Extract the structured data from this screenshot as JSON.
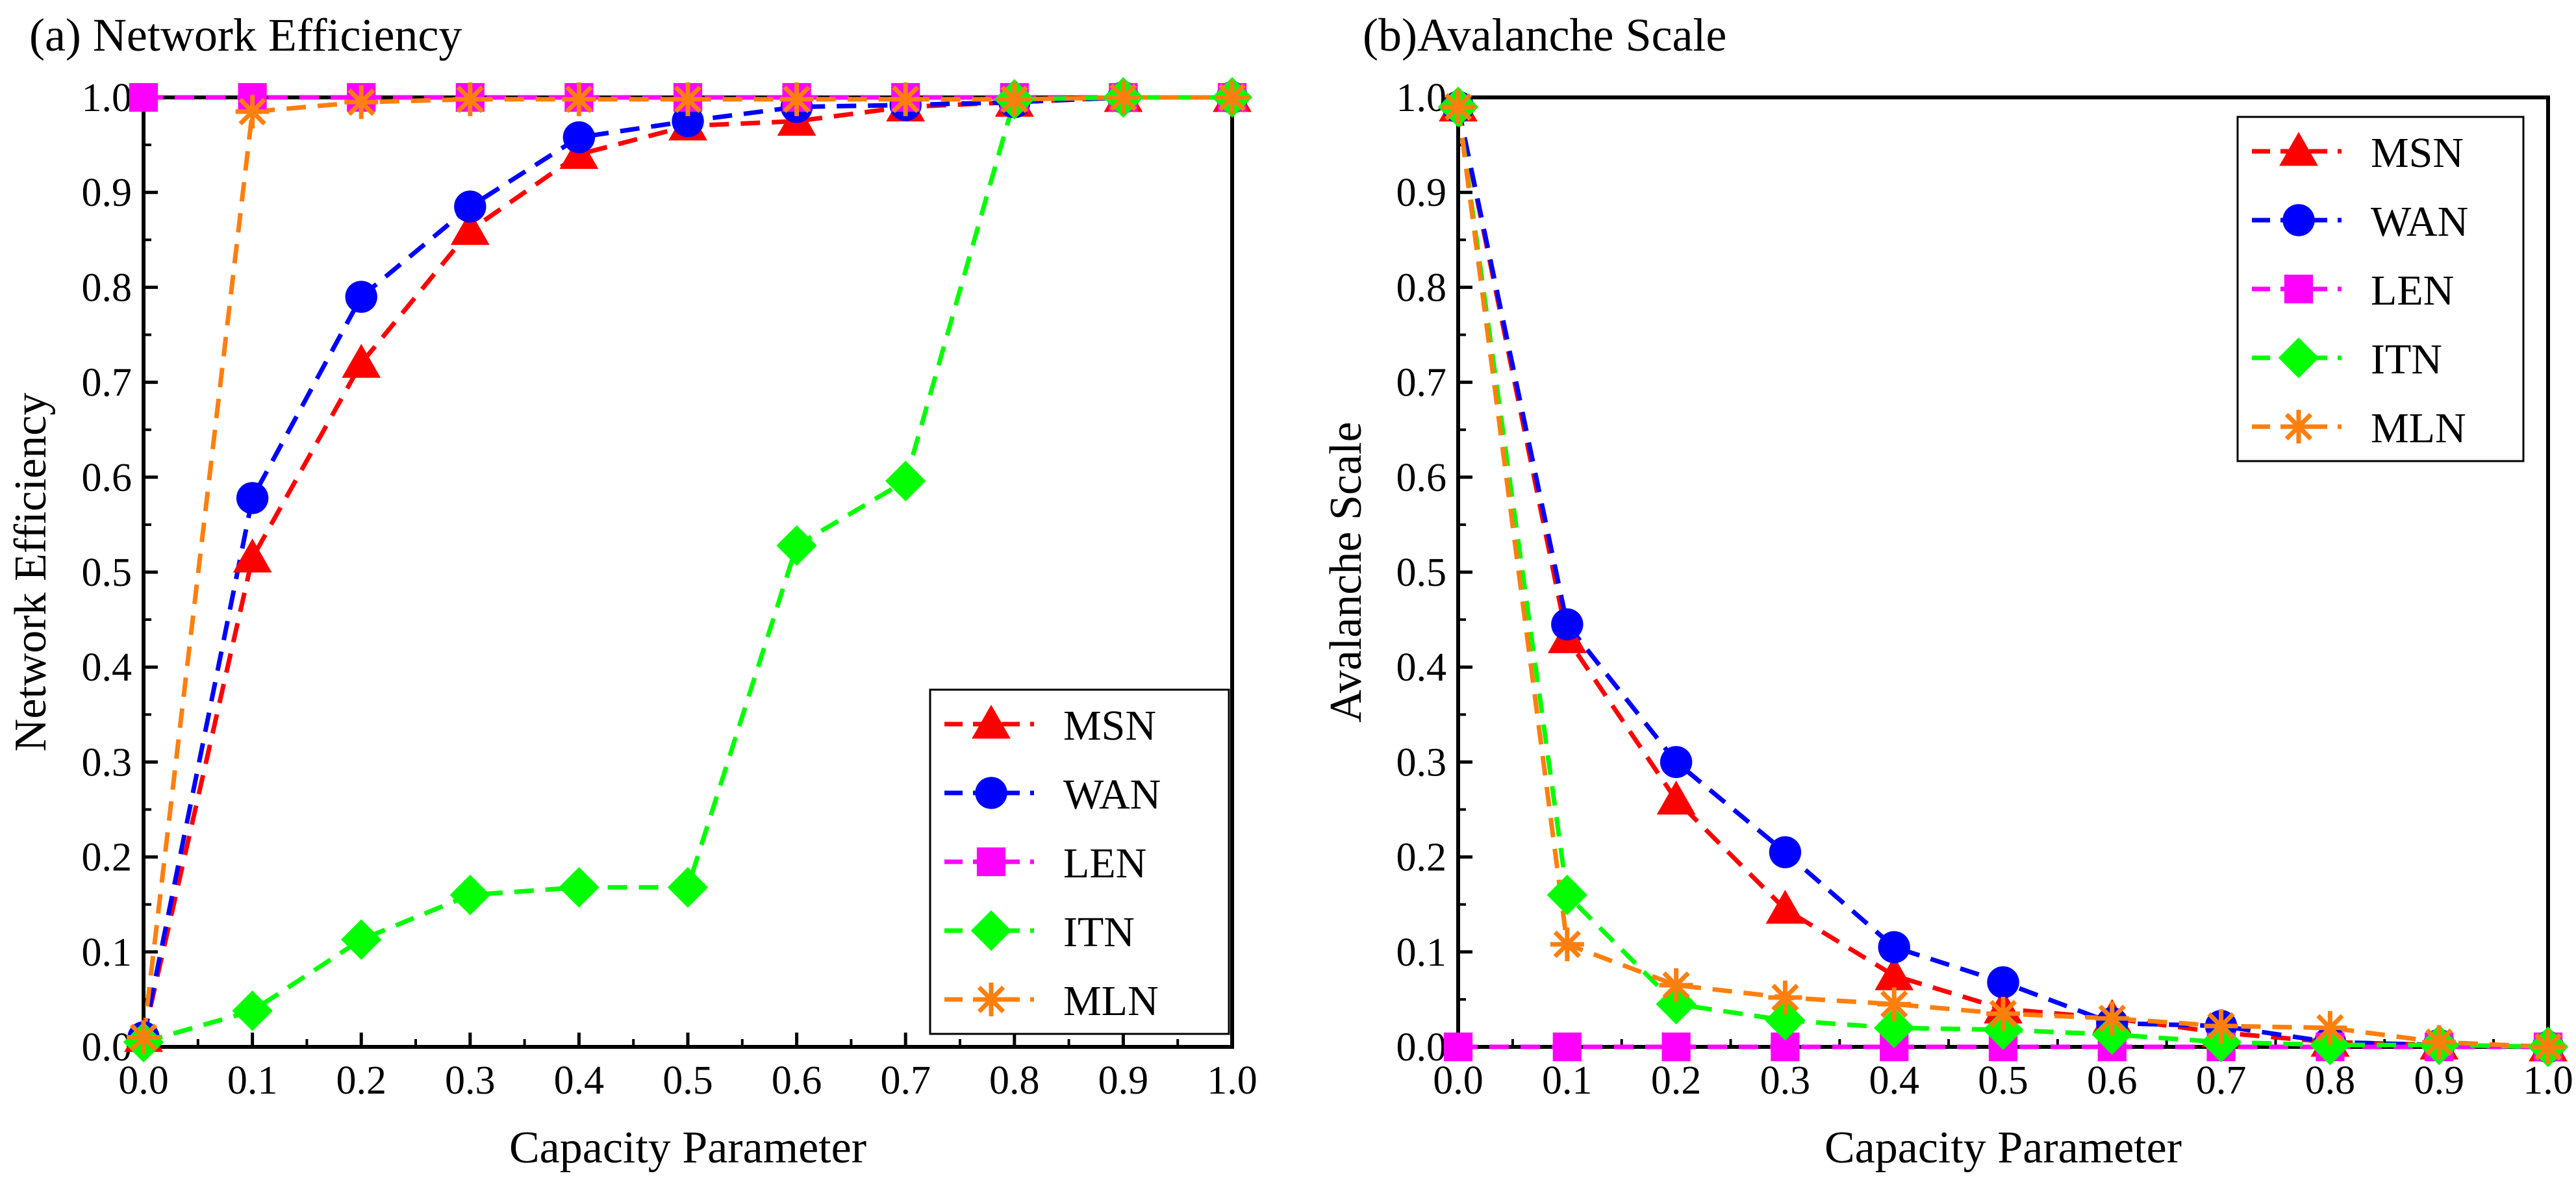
{
  "chart_data": [
    {
      "type": "line",
      "title": "(a) Network Efficiency",
      "xlabel": "Capacity Parameter",
      "ylabel": "Network Efficiency",
      "xlim": [
        0.0,
        1.0
      ],
      "ylim": [
        0.0,
        1.0
      ],
      "xticks": [
        "0.0",
        "0.1",
        "0.2",
        "0.3",
        "0.4",
        "0.5",
        "0.6",
        "0.7",
        "0.8",
        "0.9",
        "1.0"
      ],
      "yticks": [
        "0.0",
        "0.1",
        "0.2",
        "0.3",
        "0.4",
        "0.5",
        "0.6",
        "0.7",
        "0.8",
        "0.9",
        "1.0"
      ],
      "grid": false,
      "legend_position": "bottom-right",
      "x": [
        0.0,
        0.1,
        0.2,
        0.3,
        0.4,
        0.5,
        0.6,
        0.7,
        0.8,
        0.9,
        1.0
      ],
      "series": [
        {
          "name": "MSN",
          "color": "#ff0000",
          "marker": "triangle",
          "values": [
            0.01,
            0.515,
            0.72,
            0.86,
            0.94,
            0.97,
            0.975,
            0.99,
            0.995,
            1.0,
            1.0
          ]
        },
        {
          "name": "WAN",
          "color": "#0000ff",
          "marker": "circle",
          "values": [
            0.01,
            0.578,
            0.79,
            0.885,
            0.958,
            0.975,
            0.99,
            0.992,
            0.995,
            1.0,
            1.0
          ]
        },
        {
          "name": "LEN",
          "color": "#ff00ff",
          "marker": "square",
          "values": [
            1.0,
            1.0,
            1.0,
            1.0,
            1.0,
            1.0,
            1.0,
            1.0,
            1.0,
            1.0,
            1.0
          ]
        },
        {
          "name": "ITN",
          "color": "#00ff00",
          "marker": "diamond",
          "values": [
            0.005,
            0.038,
            0.113,
            0.16,
            0.168,
            0.168,
            0.528,
            0.596,
            0.998,
            1.0,
            1.0
          ]
        },
        {
          "name": "MLN",
          "color": "#ff7f0e",
          "marker": "asterisk",
          "values": [
            0.01,
            0.985,
            0.995,
            0.998,
            0.998,
            0.998,
            0.998,
            0.998,
            0.998,
            1.0,
            1.0
          ]
        }
      ]
    },
    {
      "type": "line",
      "title": "(b)Avalanche Scale",
      "xlabel": "Capacity Parameter",
      "ylabel": "Avalanche Scale",
      "xlim": [
        0.0,
        1.0
      ],
      "ylim": [
        0.0,
        1.0
      ],
      "xticks": [
        "0.0",
        "0.1",
        "0.2",
        "0.3",
        "0.4",
        "0.5",
        "0.6",
        "0.7",
        "0.8",
        "0.9",
        "1.0"
      ],
      "yticks": [
        "0.0",
        "0.1",
        "0.2",
        "0.3",
        "0.4",
        "0.5",
        "0.6",
        "0.7",
        "0.8",
        "0.9",
        "1.0"
      ],
      "grid": false,
      "legend_position": "top-right",
      "x": [
        0.0,
        0.1,
        0.2,
        0.3,
        0.4,
        0.5,
        0.6,
        0.7,
        0.8,
        0.9,
        1.0
      ],
      "series": [
        {
          "name": "MSN",
          "color": "#ff0000",
          "marker": "triangle",
          "values": [
            0.99,
            0.43,
            0.26,
            0.145,
            0.075,
            0.04,
            0.03,
            0.015,
            0.005,
            0.002,
            0.0
          ]
        },
        {
          "name": "WAN",
          "color": "#0000ff",
          "marker": "circle",
          "values": [
            0.99,
            0.445,
            0.3,
            0.205,
            0.105,
            0.068,
            0.025,
            0.022,
            0.005,
            0.002,
            0.0
          ]
        },
        {
          "name": "LEN",
          "color": "#ff00ff",
          "marker": "square",
          "values": [
            0.0,
            0.0,
            0.0,
            0.0,
            0.0,
            0.0,
            0.0,
            0.0,
            0.0,
            0.0,
            0.0
          ]
        },
        {
          "name": "ITN",
          "color": "#00ff00",
          "marker": "diamond",
          "values": [
            0.99,
            0.16,
            0.045,
            0.028,
            0.02,
            0.018,
            0.013,
            0.005,
            0.002,
            0.002,
            0.0
          ]
        },
        {
          "name": "MLN",
          "color": "#ff7f0e",
          "marker": "asterisk",
          "values": [
            0.99,
            0.108,
            0.065,
            0.052,
            0.045,
            0.035,
            0.03,
            0.022,
            0.02,
            0.005,
            0.0
          ]
        }
      ]
    }
  ]
}
